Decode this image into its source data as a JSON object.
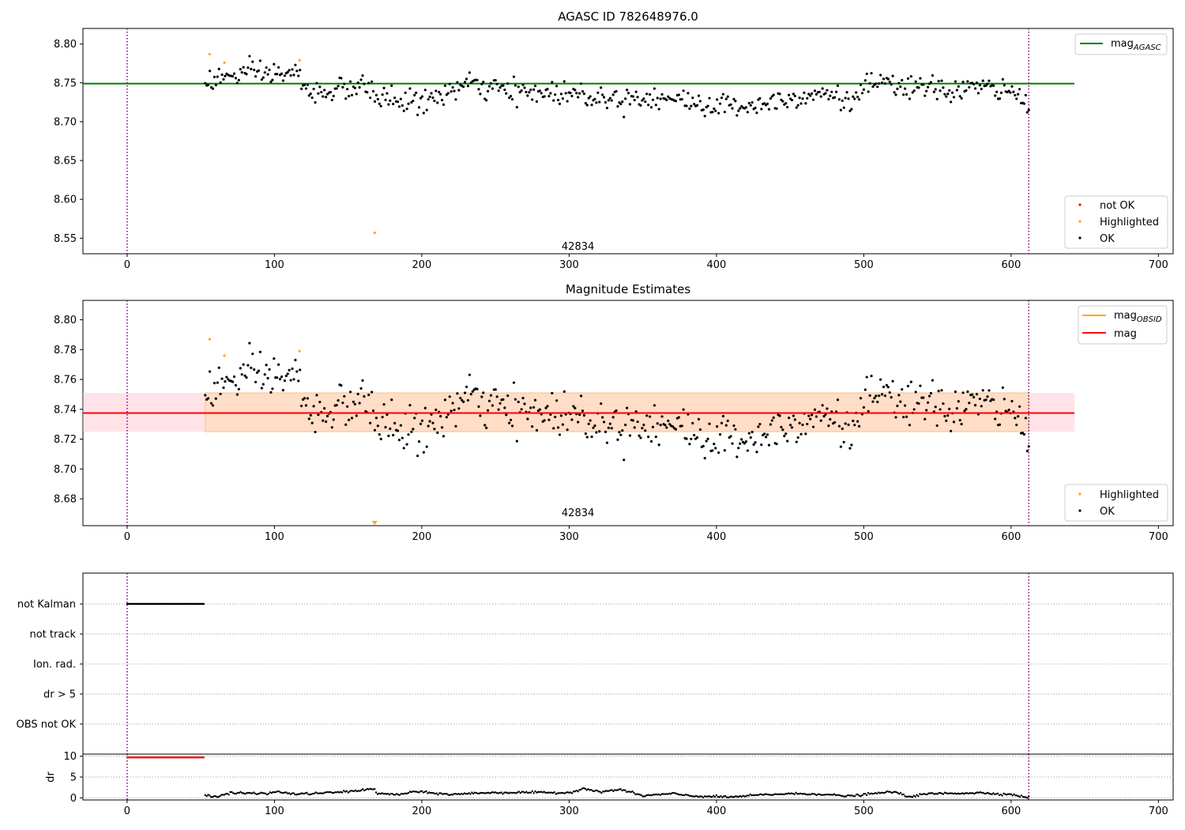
{
  "chart_data": [
    {
      "type": "scatter",
      "title": "AGASC ID 782648976.0",
      "xlim": [
        -30,
        710
      ],
      "ylim": [
        8.53,
        8.82
      ],
      "xticks": [
        0,
        100,
        200,
        300,
        400,
        500,
        600,
        700
      ],
      "yticks": [
        "8.55",
        "8.60",
        "8.65",
        "8.70",
        "8.75",
        "8.80"
      ],
      "annotation": {
        "text": "42834",
        "x": 306,
        "y": 8.535
      },
      "vlines": [
        0,
        612
      ],
      "hline": {
        "name": "mag_AGASC",
        "value": 8.749,
        "x_range": [
          -30,
          643
        ],
        "color": "#008000"
      },
      "legend_lines": [
        {
          "label": "mag",
          "subscript": "AGASC",
          "color": "#008000",
          "position": "top-right"
        }
      ],
      "legend_points": [
        {
          "label": "not OK",
          "color": "#ff0000"
        },
        {
          "label": "Highlighted",
          "color": "#ffa500"
        },
        {
          "label": "OK",
          "color": "#000000"
        }
      ],
      "highlighted_points": [
        [
          56,
          8.787
        ],
        [
          66,
          8.776
        ],
        [
          117,
          8.779
        ],
        [
          168,
          8.557
        ]
      ],
      "series_ok": {
        "x_start": 53,
        "x_end": 612,
        "n_points": 540,
        "trend_knots": [
          [
            53,
            8.752
          ],
          [
            80,
            8.762
          ],
          [
            117,
            8.762
          ],
          [
            120,
            8.737
          ],
          [
            160,
            8.744
          ],
          [
            175,
            8.73
          ],
          [
            200,
            8.724
          ],
          [
            230,
            8.748
          ],
          [
            260,
            8.738
          ],
          [
            300,
            8.737
          ],
          [
            330,
            8.73
          ],
          [
            360,
            8.732
          ],
          [
            380,
            8.726
          ],
          [
            400,
            8.72
          ],
          [
            430,
            8.722
          ],
          [
            450,
            8.732
          ],
          [
            480,
            8.738
          ],
          [
            490,
            8.72
          ],
          [
            500,
            8.748
          ],
          [
            560,
            8.74
          ],
          [
            575,
            8.745
          ],
          [
            600,
            8.738
          ],
          [
            612,
            8.722
          ]
        ]
      }
    },
    {
      "type": "scatter",
      "title": "Magnitude Estimates",
      "xlim": [
        -30,
        710
      ],
      "ylim": [
        8.662,
        8.813
      ],
      "xticks": [
        0,
        100,
        200,
        300,
        400,
        500,
        600,
        700
      ],
      "yticks": [
        "8.68",
        "8.70",
        "8.72",
        "8.74",
        "8.76",
        "8.78",
        "8.80"
      ],
      "annotation": {
        "text": "42834",
        "x": 306,
        "y": 8.664
      },
      "vlines": [
        0,
        612
      ],
      "mag_line": {
        "name": "mag",
        "value": 8.7375,
        "x_range": [
          -30,
          643
        ],
        "color": "#ff0000"
      },
      "mag_obsid_line": {
        "name": "mag_OBSID",
        "value": 8.7375,
        "x_range": [
          53,
          612
        ],
        "color": "#ffa500"
      },
      "band_mag": {
        "low": 8.725,
        "high": 8.751,
        "x_range": [
          -30,
          643
        ],
        "color": "#ffc0cb"
      },
      "band_obsid": {
        "low": 8.725,
        "high": 8.751,
        "x_range": [
          53,
          612
        ],
        "color": "#ffdab9"
      },
      "legend_lines": [
        {
          "label": "mag",
          "subscript": "OBSID",
          "color": "#ffa500",
          "position": "top-right"
        },
        {
          "label": "mag",
          "subscript": "",
          "color": "#ff0000",
          "position": "top-right"
        }
      ],
      "legend_points": [
        {
          "label": "Highlighted",
          "color": "#ffa500"
        },
        {
          "label": "OK",
          "color": "#000000"
        }
      ],
      "highlighted_points": [
        [
          56,
          8.787
        ],
        [
          66,
          8.776
        ],
        [
          117,
          8.779
        ]
      ],
      "offscale_marker": {
        "x": 168,
        "color": "#ffa500"
      }
    },
    {
      "type": "scatter",
      "title": "",
      "xlim": [
        -30,
        710
      ],
      "categories": [
        "not Kalman",
        "not track",
        "Ion. rad.",
        "dr > 5",
        "OBS not OK"
      ],
      "vlines": [
        0,
        612
      ],
      "flags": [
        {
          "category": "not Kalman",
          "x_range": [
            0,
            52
          ],
          "color": "#000000"
        }
      ]
    },
    {
      "type": "scatter",
      "title": "",
      "ylabel": "dr",
      "xlim": [
        -30,
        710
      ],
      "ylim": [
        -0.5,
        10.5
      ],
      "xticks": [
        0,
        100,
        200,
        300,
        400,
        500,
        600,
        700
      ],
      "yticks": [
        "0",
        "5",
        "10"
      ],
      "vlines": [
        0,
        612
      ],
      "red_flag": {
        "x_range": [
          0,
          52
        ],
        "value": 9.7,
        "color": "#ff0000"
      },
      "series_ok": {
        "x_start": 53,
        "x_end": 612,
        "knots": [
          [
            53,
            0.8
          ],
          [
            60,
            0.2
          ],
          [
            70,
            1.2
          ],
          [
            95,
            1.0
          ],
          [
            100,
            1.5
          ],
          [
            115,
            0.9
          ],
          [
            130,
            1.1
          ],
          [
            150,
            1.5
          ],
          [
            167,
            2.2
          ],
          [
            170,
            1.0
          ],
          [
            185,
            0.8
          ],
          [
            195,
            1.5
          ],
          [
            220,
            0.8
          ],
          [
            240,
            1.2
          ],
          [
            270,
            1.3
          ],
          [
            300,
            1.2
          ],
          [
            310,
            2.3
          ],
          [
            320,
            1.4
          ],
          [
            335,
            2.0
          ],
          [
            350,
            0.5
          ],
          [
            370,
            1.0
          ],
          [
            385,
            0.4
          ],
          [
            410,
            0.2
          ],
          [
            430,
            0.7
          ],
          [
            450,
            1.0
          ],
          [
            470,
            0.9
          ],
          [
            490,
            0.4
          ],
          [
            520,
            1.5
          ],
          [
            530,
            0.3
          ],
          [
            545,
            1.0
          ],
          [
            580,
            1.2
          ],
          [
            600,
            0.8
          ],
          [
            612,
            0.1
          ]
        ]
      }
    }
  ]
}
